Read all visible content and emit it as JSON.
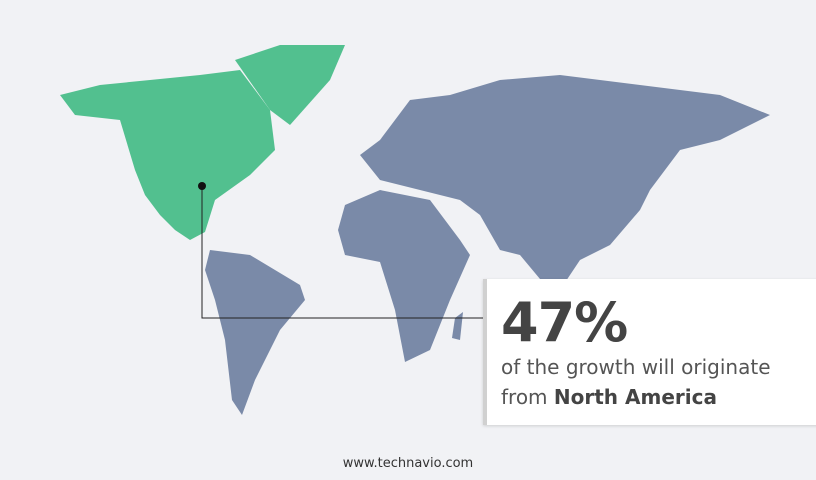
{
  "stat": {
    "value": "47%",
    "line1": "of the growth will originate",
    "line2_prefix": "from",
    "region": "North America"
  },
  "highlight_region": "North America",
  "colors": {
    "highlight": "#52c08f",
    "other": "#7a8aa8",
    "background": "#f1f2f5"
  },
  "footer": "www.technavio.com"
}
